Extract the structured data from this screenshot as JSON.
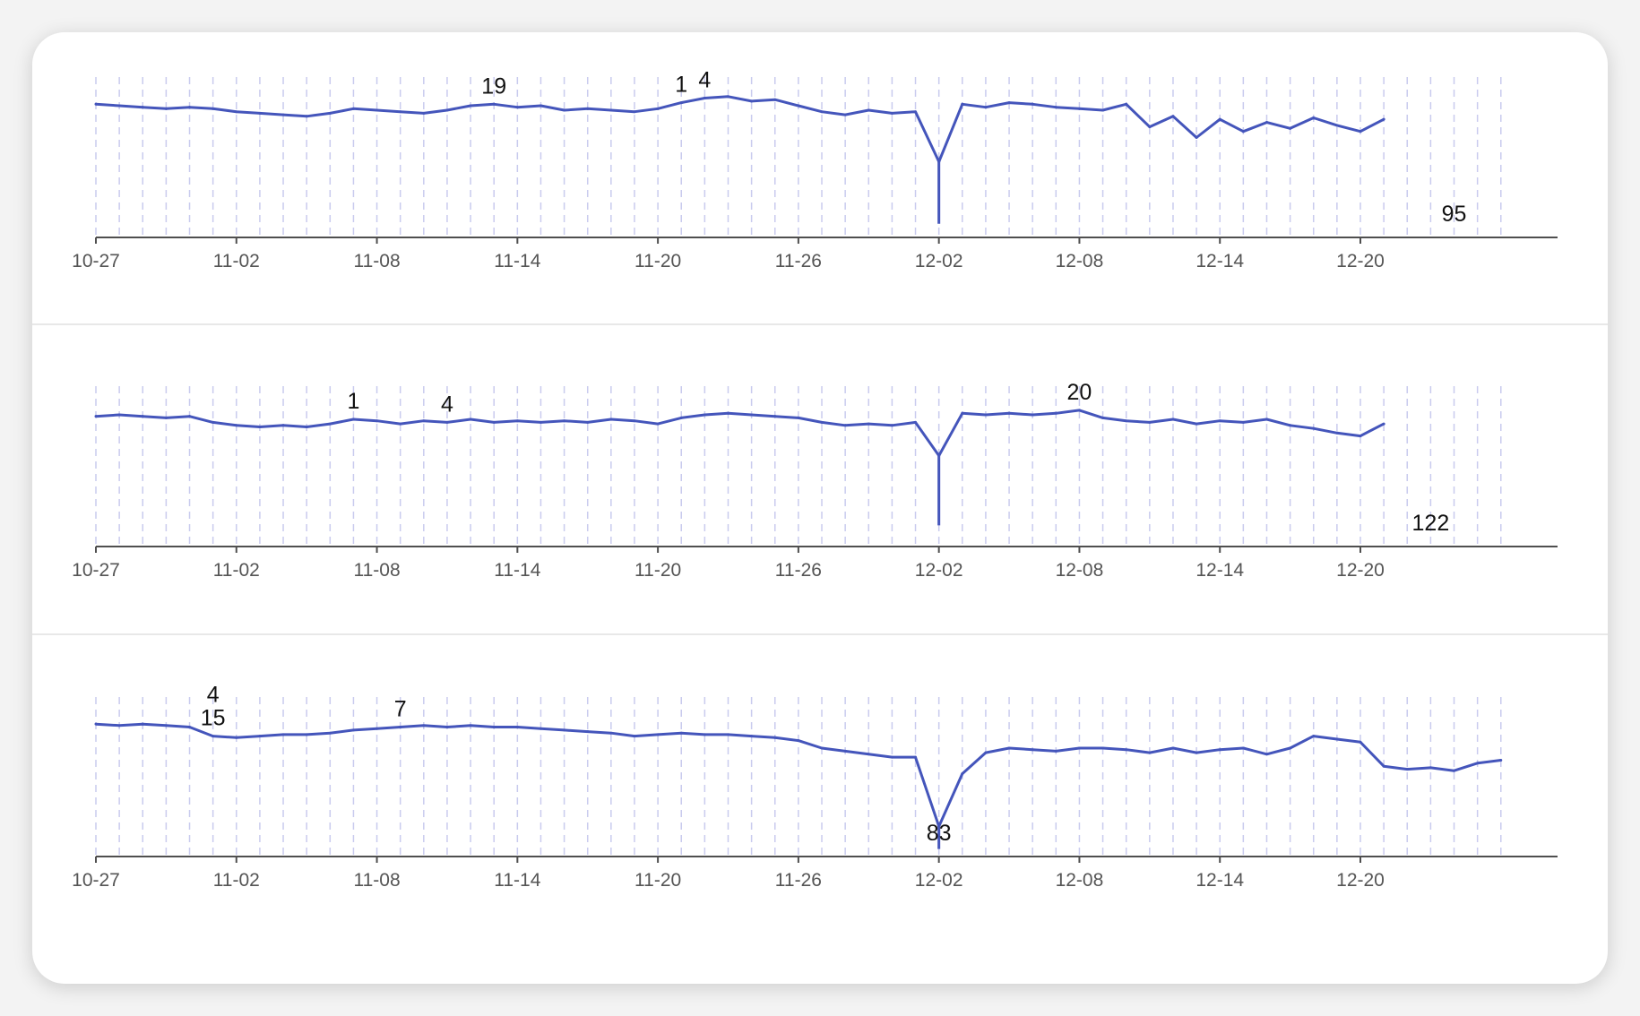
{
  "chart_data": [
    {
      "type": "line",
      "x_ticks": [
        "10-27",
        "11-02",
        "11-08",
        "11-14",
        "11-20",
        "11-26",
        "12-02",
        "12-08",
        "12-14",
        "12-20"
      ],
      "xlim": [
        "10-27",
        "12-26"
      ],
      "grid": "vertical dashed, every 1 day",
      "series_color": "#4455bb",
      "points": [
        [
          "10-27",
          88
        ],
        [
          "10-28",
          87
        ],
        [
          "10-29",
          86
        ],
        [
          "10-30",
          85
        ],
        [
          "10-31",
          86
        ],
        [
          "11-01",
          85
        ],
        [
          "11-02",
          83
        ],
        [
          "11-03",
          82
        ],
        [
          "11-04",
          81
        ],
        [
          "11-05",
          80
        ],
        [
          "11-06",
          82
        ],
        [
          "11-07",
          85
        ],
        [
          "11-08",
          84
        ],
        [
          "11-09",
          83
        ],
        [
          "11-10",
          82
        ],
        [
          "11-11",
          84
        ],
        [
          "11-12",
          87
        ],
        [
          "11-13",
          88
        ],
        [
          "11-14",
          86
        ],
        [
          "11-15",
          87
        ],
        [
          "11-16",
          84
        ],
        [
          "11-17",
          85
        ],
        [
          "11-18",
          84
        ],
        [
          "11-19",
          83
        ],
        [
          "11-20",
          85
        ],
        [
          "11-21",
          89
        ],
        [
          "11-22",
          92
        ],
        [
          "11-23",
          93
        ],
        [
          "11-24",
          90
        ],
        [
          "11-25",
          91
        ],
        [
          "11-26",
          87
        ],
        [
          "11-27",
          83
        ],
        [
          "11-28",
          81
        ],
        [
          "11-29",
          84
        ],
        [
          "11-30",
          82
        ],
        [
          "12-01",
          83
        ],
        [
          "12-02",
          50
        ],
        [
          "12-03",
          88
        ],
        [
          "12-04",
          86
        ],
        [
          "12-05",
          89
        ],
        [
          "12-06",
          88
        ],
        [
          "12-07",
          86
        ],
        [
          "12-08",
          85
        ],
        [
          "12-09",
          84
        ],
        [
          "12-10",
          88
        ],
        [
          "12-11",
          73
        ],
        [
          "12-12",
          80
        ],
        [
          "12-13",
          66
        ],
        [
          "12-14",
          78
        ],
        [
          "12-15",
          70
        ],
        [
          "12-16",
          76
        ],
        [
          "12-17",
          72
        ],
        [
          "12-18",
          79
        ],
        [
          "12-19",
          74
        ],
        [
          "12-20",
          70
        ],
        [
          "12-21",
          78
        ]
      ],
      "spikes": [
        [
          "12-02",
          9
        ]
      ],
      "annotations": [
        {
          "x": "11-13",
          "text": "19"
        },
        {
          "x": "11-21",
          "text": "1"
        },
        {
          "x": "11-22",
          "text": "4"
        },
        {
          "x": "12-24",
          "text": "95"
        }
      ]
    },
    {
      "type": "line",
      "x_ticks": [
        "10-27",
        "11-02",
        "11-08",
        "11-14",
        "11-20",
        "11-26",
        "12-02",
        "12-08",
        "12-14",
        "12-20"
      ],
      "xlim": [
        "10-27",
        "12-26"
      ],
      "grid": "vertical dashed, every 1 day",
      "series_color": "#4455bb",
      "points": [
        [
          "10-27",
          86
        ],
        [
          "10-28",
          87
        ],
        [
          "10-29",
          86
        ],
        [
          "10-30",
          85
        ],
        [
          "10-31",
          86
        ],
        [
          "11-01",
          82
        ],
        [
          "11-02",
          80
        ],
        [
          "11-03",
          79
        ],
        [
          "11-04",
          80
        ],
        [
          "11-05",
          79
        ],
        [
          "11-06",
          81
        ],
        [
          "11-07",
          84
        ],
        [
          "11-08",
          83
        ],
        [
          "11-09",
          81
        ],
        [
          "11-10",
          83
        ],
        [
          "11-11",
          82
        ],
        [
          "11-12",
          84
        ],
        [
          "11-13",
          82
        ],
        [
          "11-14",
          83
        ],
        [
          "11-15",
          82
        ],
        [
          "11-16",
          83
        ],
        [
          "11-17",
          82
        ],
        [
          "11-18",
          84
        ],
        [
          "11-19",
          83
        ],
        [
          "11-20",
          81
        ],
        [
          "11-21",
          85
        ],
        [
          "11-22",
          87
        ],
        [
          "11-23",
          88
        ],
        [
          "11-24",
          87
        ],
        [
          "11-25",
          86
        ],
        [
          "11-26",
          85
        ],
        [
          "11-27",
          82
        ],
        [
          "11-28",
          80
        ],
        [
          "11-29",
          81
        ],
        [
          "11-30",
          80
        ],
        [
          "12-01",
          82
        ],
        [
          "12-02",
          60
        ],
        [
          "12-03",
          88
        ],
        [
          "12-04",
          87
        ],
        [
          "12-05",
          88
        ],
        [
          "12-06",
          87
        ],
        [
          "12-07",
          88
        ],
        [
          "12-08",
          90
        ],
        [
          "12-09",
          85
        ],
        [
          "12-10",
          83
        ],
        [
          "12-11",
          82
        ],
        [
          "12-12",
          84
        ],
        [
          "12-13",
          81
        ],
        [
          "12-14",
          83
        ],
        [
          "12-15",
          82
        ],
        [
          "12-16",
          84
        ],
        [
          "12-17",
          80
        ],
        [
          "12-18",
          78
        ],
        [
          "12-19",
          75
        ],
        [
          "12-20",
          73
        ],
        [
          "12-21",
          81
        ]
      ],
      "spikes": [
        [
          "12-02",
          14
        ]
      ],
      "annotations": [
        {
          "x": "11-07",
          "text": "1"
        },
        {
          "x": "11-11",
          "text": "4"
        },
        {
          "x": "12-08",
          "text": "20"
        },
        {
          "x": "12-23",
          "text": "122"
        }
      ]
    },
    {
      "type": "line",
      "x_ticks": [
        "10-27",
        "11-02",
        "11-08",
        "11-14",
        "11-20",
        "11-26",
        "12-02",
        "12-08",
        "12-14",
        "12-20"
      ],
      "xlim": [
        "10-27",
        "12-26"
      ],
      "grid": "vertical dashed, every 1 day",
      "series_color": "#4455bb",
      "points": [
        [
          "10-27",
          88
        ],
        [
          "10-28",
          87
        ],
        [
          "10-29",
          88
        ],
        [
          "10-30",
          87
        ],
        [
          "10-31",
          86
        ],
        [
          "11-01",
          80
        ],
        [
          "11-02",
          79
        ],
        [
          "11-03",
          80
        ],
        [
          "11-04",
          81
        ],
        [
          "11-05",
          81
        ],
        [
          "11-06",
          82
        ],
        [
          "11-07",
          84
        ],
        [
          "11-08",
          85
        ],
        [
          "11-09",
          86
        ],
        [
          "11-10",
          87
        ],
        [
          "11-11",
          86
        ],
        [
          "11-12",
          87
        ],
        [
          "11-13",
          86
        ],
        [
          "11-14",
          86
        ],
        [
          "11-15",
          85
        ],
        [
          "11-16",
          84
        ],
        [
          "11-17",
          83
        ],
        [
          "11-18",
          82
        ],
        [
          "11-19",
          80
        ],
        [
          "11-20",
          81
        ],
        [
          "11-21",
          82
        ],
        [
          "11-22",
          81
        ],
        [
          "11-23",
          81
        ],
        [
          "11-24",
          80
        ],
        [
          "11-25",
          79
        ],
        [
          "11-26",
          77
        ],
        [
          "11-27",
          72
        ],
        [
          "11-28",
          70
        ],
        [
          "11-29",
          68
        ],
        [
          "11-30",
          66
        ],
        [
          "12-01",
          66
        ],
        [
          "12-02",
          20
        ],
        [
          "12-03",
          55
        ],
        [
          "12-04",
          69
        ],
        [
          "12-05",
          72
        ],
        [
          "12-06",
          71
        ],
        [
          "12-07",
          70
        ],
        [
          "12-08",
          72
        ],
        [
          "12-09",
          72
        ],
        [
          "12-10",
          71
        ],
        [
          "12-11",
          69
        ],
        [
          "12-12",
          72
        ],
        [
          "12-13",
          69
        ],
        [
          "12-14",
          71
        ],
        [
          "12-15",
          72
        ],
        [
          "12-16",
          68
        ],
        [
          "12-17",
          72
        ],
        [
          "12-18",
          80
        ],
        [
          "12-19",
          78
        ],
        [
          "12-20",
          76
        ],
        [
          "12-21",
          60
        ],
        [
          "12-22",
          58
        ],
        [
          "12-23",
          59
        ],
        [
          "12-24",
          57
        ],
        [
          "12-25",
          62
        ],
        [
          "12-26",
          64
        ]
      ],
      "spikes": [
        [
          "12-02",
          5
        ]
      ],
      "annotations": [
        {
          "x": "11-01",
          "text": "4"
        },
        {
          "x": "11-01",
          "text": "15"
        },
        {
          "x": "11-09",
          "text": "7"
        },
        {
          "x": "12-02",
          "text": "83"
        }
      ]
    }
  ]
}
